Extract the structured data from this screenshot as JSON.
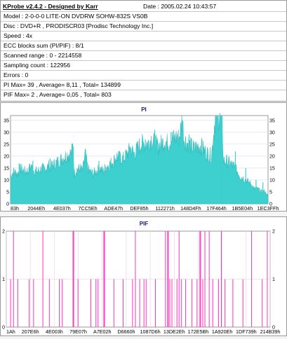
{
  "app": {
    "title": "KProbe v2.4.2 - Designed by Karr",
    "date": "Date : 2005.02.24 10:43:57"
  },
  "info": {
    "lines": [
      "Model : 2-0-0-0 LITE-ON DVDRW SOHW-832S  VS0B",
      "Disc : DVD+R , PRODISCR03 [Prodisc Technology Inc.]",
      "Speed : 4x",
      "ECC blocks sum (PI/PIF) : 8/1",
      "Scanned range : 0 - 2214558",
      "Sampling count : 122956",
      "Errors : 0",
      "PI Max= 39 , Average= 8,11 , Total= 134899",
      "PIF Max= 2 , Average= 0,05 , Total= 803"
    ]
  },
  "colors": {
    "pi_fill": "#3ecfcf",
    "pif_bar": "#ff33bb",
    "title": "#1a1a8c",
    "grid": "#d9d9ee",
    "pif_grid": "#e8cde6",
    "pif_bg": "#fff"
  },
  "chart_data": [
    {
      "type": "area",
      "title": "PI",
      "ylim": [
        0,
        37
      ],
      "yticks": [
        0,
        5,
        10,
        15,
        20,
        25,
        30,
        35
      ],
      "x_tick_labels": [
        "83h",
        "2044Eh",
        "4E037h",
        "7CC5Eh",
        "ADE47h",
        "DEF85h",
        "112271h",
        "148D4Fh",
        "17F464h",
        "1B5E04h",
        "1EC3FFh"
      ],
      "grid": true,
      "profile": [
        [
          0,
          11
        ],
        [
          4,
          13
        ],
        [
          8,
          12
        ],
        [
          12,
          14
        ],
        [
          16,
          13
        ],
        [
          20,
          13
        ],
        [
          24,
          15
        ],
        [
          28,
          13
        ],
        [
          32,
          13
        ],
        [
          36,
          14
        ],
        [
          40,
          14
        ],
        [
          44,
          15
        ],
        [
          48,
          15
        ],
        [
          52,
          16
        ],
        [
          56,
          17
        ],
        [
          60,
          18
        ],
        [
          64,
          19
        ],
        [
          68,
          20
        ],
        [
          71,
          20
        ],
        [
          73,
          24
        ],
        [
          74,
          12
        ],
        [
          78,
          14
        ],
        [
          82,
          14
        ],
        [
          84,
          13
        ],
        [
          87,
          20
        ],
        [
          90,
          14
        ],
        [
          92,
          13
        ],
        [
          96,
          12
        ],
        [
          100,
          13
        ],
        [
          104,
          14
        ],
        [
          108,
          13
        ],
        [
          112,
          15
        ],
        [
          116,
          16
        ],
        [
          120,
          17
        ],
        [
          124,
          19
        ],
        [
          128,
          18
        ],
        [
          132,
          18
        ],
        [
          136,
          20
        ],
        [
          140,
          22
        ],
        [
          144,
          20
        ],
        [
          148,
          22
        ],
        [
          152,
          24
        ],
        [
          156,
          24
        ],
        [
          160,
          24
        ],
        [
          164,
          26
        ],
        [
          168,
          24
        ],
        [
          172,
          23
        ],
        [
          176,
          24
        ],
        [
          180,
          25
        ],
        [
          184,
          24
        ],
        [
          188,
          26
        ],
        [
          192,
          26
        ],
        [
          194,
          27
        ],
        [
          196,
          26
        ],
        [
          198,
          29
        ],
        [
          200,
          35
        ],
        [
          202,
          26
        ],
        [
          206,
          24
        ],
        [
          210,
          23
        ],
        [
          214,
          22
        ],
        [
          218,
          23
        ],
        [
          222,
          23
        ],
        [
          226,
          21
        ],
        [
          230,
          20
        ],
        [
          234,
          19
        ],
        [
          236,
          26
        ],
        [
          238,
          33
        ],
        [
          240,
          36
        ],
        [
          242,
          34
        ],
        [
          244,
          38
        ],
        [
          246,
          37
        ],
        [
          248,
          17
        ],
        [
          252,
          17
        ],
        [
          256,
          16
        ],
        [
          260,
          15
        ],
        [
          264,
          13
        ],
        [
          268,
          11
        ],
        [
          272,
          10
        ],
        [
          276,
          9
        ],
        [
          280,
          8
        ],
        [
          284,
          6
        ],
        [
          288,
          6
        ],
        [
          292,
          5
        ],
        [
          296,
          5
        ],
        [
          300,
          3
        ]
      ],
      "peaks": [
        [
          10,
          17
        ],
        [
          26,
          18
        ],
        [
          46,
          19
        ],
        [
          73,
          24
        ],
        [
          87,
          20
        ],
        [
          103,
          18
        ],
        [
          127,
          22
        ],
        [
          139,
          24
        ],
        [
          157,
          27
        ],
        [
          168,
          31
        ],
        [
          187,
          30
        ],
        [
          200,
          35
        ],
        [
          208,
          29
        ],
        [
          223,
          27
        ],
        [
          240,
          36
        ],
        [
          244,
          38
        ],
        [
          246,
          37
        ],
        [
          262,
          22
        ],
        [
          274,
          15
        ],
        [
          286,
          10
        ],
        [
          294,
          9
        ]
      ]
    },
    {
      "type": "bar",
      "title": "PIF",
      "ylim": [
        0,
        2
      ],
      "yticks": [
        0,
        1,
        2
      ],
      "x_tick_labels": [
        "1Ah",
        "207E6h",
        "4E003h",
        "79E07h",
        "A7E02h",
        "D6660h",
        "1087D6h",
        "13DE2Eh",
        "172E5Bh",
        "1A920Eh",
        "1DF739h",
        "214B39h"
      ],
      "grid": true,
      "bars": [
        [
          6,
          1
        ],
        [
          10,
          2
        ],
        [
          16,
          1
        ],
        [
          32,
          1
        ],
        [
          38,
          1
        ],
        [
          51,
          2
        ],
        [
          60,
          1
        ],
        [
          74,
          1
        ],
        [
          78,
          1
        ],
        [
          93,
          2
        ],
        [
          94,
          2
        ],
        [
          100,
          1
        ],
        [
          118,
          1
        ],
        [
          125,
          1
        ],
        [
          128,
          1
        ],
        [
          136,
          2
        ],
        [
          137,
          2
        ],
        [
          150,
          1
        ],
        [
          163,
          1
        ],
        [
          176,
          1
        ],
        [
          180,
          2
        ],
        [
          186,
          1
        ],
        [
          192,
          1
        ],
        [
          195,
          1
        ],
        [
          208,
          1
        ],
        [
          222,
          2
        ],
        [
          225,
          2
        ],
        [
          226,
          2
        ],
        [
          228,
          1
        ],
        [
          231,
          1
        ],
        [
          238,
          1
        ],
        [
          241,
          2
        ],
        [
          244,
          1
        ],
        [
          250,
          1
        ],
        [
          259,
          1
        ],
        [
          266,
          1
        ],
        [
          270,
          2
        ],
        [
          271,
          2
        ],
        [
          274,
          1
        ],
        [
          277,
          2
        ],
        [
          283,
          2
        ],
        [
          288,
          1
        ],
        [
          296,
          1
        ],
        [
          300,
          2
        ],
        [
          305,
          1
        ],
        [
          316,
          1
        ],
        [
          330,
          1
        ],
        [
          342,
          2
        ],
        [
          357,
          1
        ],
        [
          364,
          2
        ]
      ]
    }
  ]
}
